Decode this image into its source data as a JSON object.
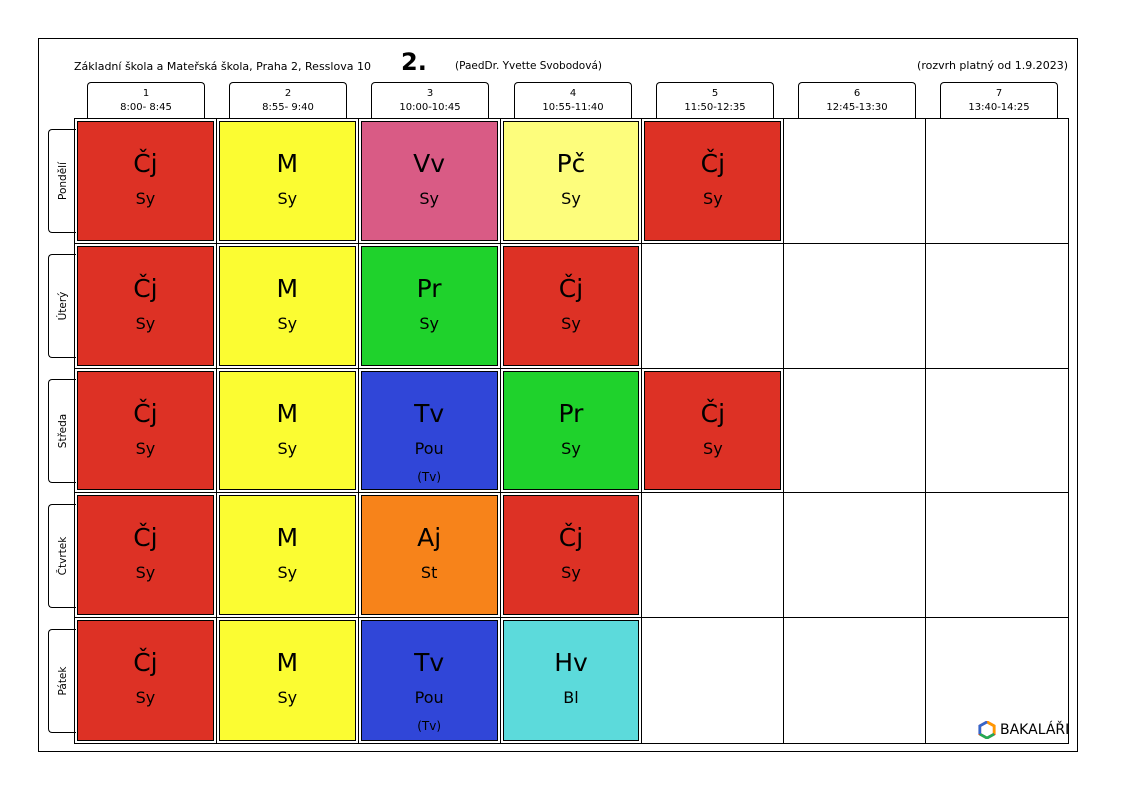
{
  "header": {
    "school": "Základní škola a Mateřská škola, Praha 2, Resslova 10",
    "class_name": "2.",
    "teacher": "(PaedDr. Yvette Svobodová)",
    "validity": "(rozvrh platný od 1.9.2023)"
  },
  "periods": [
    {
      "num": "1",
      "time": "8:00- 8:45"
    },
    {
      "num": "2",
      "time": "8:55- 9:40"
    },
    {
      "num": "3",
      "time": "10:00-10:45"
    },
    {
      "num": "4",
      "time": "10:55-11:40"
    },
    {
      "num": "5",
      "time": "11:50-12:35"
    },
    {
      "num": "6",
      "time": "12:45-13:30"
    },
    {
      "num": "7",
      "time": "13:40-14:25"
    }
  ],
  "days": [
    "Pondělí",
    "Úterý",
    "Středa",
    "Čtvrtek",
    "Pátek"
  ],
  "subject_colors": {
    "Čj": "#dd3125",
    "M": "#fbfc32",
    "Vv": "#d95b85",
    "Pč": "#fdfd7c",
    "Pr": "#1fd22c",
    "Tv": "#3046d8",
    "Aj": "#f7831a",
    "Hv": "#5cdadb"
  },
  "lessons": [
    [
      {
        "subject": "Čj",
        "teacher": "Sy"
      },
      {
        "subject": "M",
        "teacher": "Sy"
      },
      {
        "subject": "Vv",
        "teacher": "Sy"
      },
      {
        "subject": "Pč",
        "teacher": "Sy"
      },
      {
        "subject": "Čj",
        "teacher": "Sy"
      },
      null,
      null
    ],
    [
      {
        "subject": "Čj",
        "teacher": "Sy"
      },
      {
        "subject": "M",
        "teacher": "Sy"
      },
      {
        "subject": "Pr",
        "teacher": "Sy"
      },
      {
        "subject": "Čj",
        "teacher": "Sy"
      },
      null,
      null,
      null
    ],
    [
      {
        "subject": "Čj",
        "teacher": "Sy"
      },
      {
        "subject": "M",
        "teacher": "Sy"
      },
      {
        "subject": "Tv",
        "teacher": "Pou",
        "group": "(Tv)"
      },
      {
        "subject": "Pr",
        "teacher": "Sy"
      },
      {
        "subject": "Čj",
        "teacher": "Sy"
      },
      null,
      null
    ],
    [
      {
        "subject": "Čj",
        "teacher": "Sy"
      },
      {
        "subject": "M",
        "teacher": "Sy"
      },
      {
        "subject": "Aj",
        "teacher": "St"
      },
      {
        "subject": "Čj",
        "teacher": "Sy"
      },
      null,
      null,
      null
    ],
    [
      {
        "subject": "Čj",
        "teacher": "Sy"
      },
      {
        "subject": "M",
        "teacher": "Sy"
      },
      {
        "subject": "Tv",
        "teacher": "Pou",
        "group": "(Tv)"
      },
      {
        "subject": "Hv",
        "teacher": "Bl"
      },
      null,
      null,
      null
    ]
  ],
  "logo": {
    "text": "BAKALÁŘI",
    "icon": "bakalari-hexagon-icon"
  }
}
